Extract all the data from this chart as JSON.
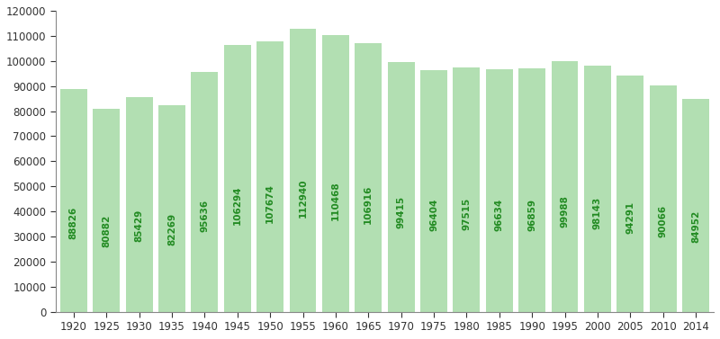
{
  "years": [
    1920,
    1925,
    1930,
    1935,
    1940,
    1945,
    1950,
    1955,
    1960,
    1965,
    1970,
    1975,
    1980,
    1985,
    1990,
    1995,
    2000,
    2005,
    2010,
    2014
  ],
  "values": [
    88826,
    80882,
    85429,
    82269,
    95636,
    106294,
    107674,
    112940,
    110468,
    106916,
    99415,
    96404,
    97515,
    96634,
    96859,
    99988,
    98143,
    94291,
    90066,
    84952
  ],
  "bar_color": "#b2dfb2",
  "bar_edge_color": "#b2dfb2",
  "label_color": "#228B22",
  "background_color": "#ffffff",
  "ylim": [
    0,
    120000
  ],
  "yticks": [
    0,
    10000,
    20000,
    30000,
    40000,
    50000,
    60000,
    70000,
    80000,
    90000,
    100000,
    110000,
    120000
  ],
  "label_fontsize": 7.5,
  "tick_fontsize": 8.5
}
